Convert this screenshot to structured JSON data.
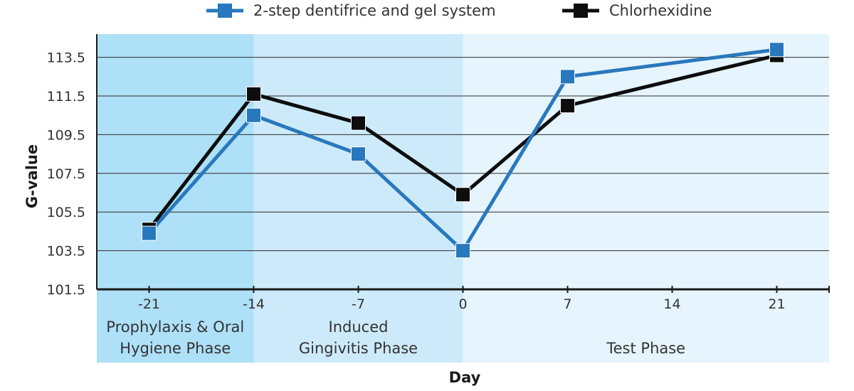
{
  "chart_data": {
    "type": "line",
    "xlabel": "Day",
    "ylabel": "G-value",
    "x_ticks": [
      "-21",
      "-14",
      "-7",
      "0",
      "7",
      "14",
      "21"
    ],
    "y_ticks": [
      "101.5",
      "103.5",
      "105.5",
      "107.5",
      "109.5",
      "111.5",
      "113.5"
    ],
    "xlim": [
      -24.5,
      24.5
    ],
    "ylim": [
      101.5,
      114.7
    ],
    "grid": "horizontal",
    "legend_position": "top",
    "phases": [
      {
        "lines": [
          "Prophylaxis & Oral",
          "Hygiene Phase"
        ],
        "x_range": [
          -24.5,
          -14
        ],
        "color": "#aee0f7"
      },
      {
        "lines": [
          "Induced",
          "Gingivitis Phase"
        ],
        "x_range": [
          -14,
          0
        ],
        "color": "#cdeafa"
      },
      {
        "lines": [
          "Test Phase"
        ],
        "x_range": [
          0,
          24.5
        ],
        "color": "#e6f4fd"
      }
    ],
    "series": [
      {
        "name": "2-step dentifrice and gel system",
        "color": "#2878bd",
        "x": [
          -21,
          -14,
          -7,
          0,
          7,
          21
        ],
        "y": [
          104.4,
          110.5,
          108.5,
          103.5,
          112.5,
          113.9
        ]
      },
      {
        "name": "Chlorhexidine",
        "color": "#0d0d0d",
        "x": [
          -21,
          -14,
          -7,
          0,
          7,
          21
        ],
        "y": [
          104.6,
          111.6,
          110.1,
          106.4,
          111.0,
          113.6
        ]
      }
    ]
  }
}
